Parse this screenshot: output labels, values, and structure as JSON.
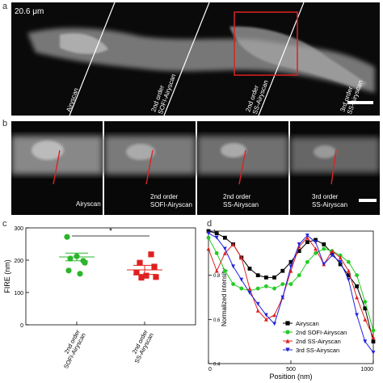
{
  "panel_a": {
    "label": "a",
    "scale_text": "20.6 μm",
    "sections": [
      {
        "line1": "Airyscan",
        "line2": ""
      },
      {
        "line1": "2nd order",
        "line2": "SOFI-Airyscan"
      },
      {
        "line1": "2nd order",
        "line2": "SS-Airyscan"
      },
      {
        "line1": "3rd order",
        "line2": "SS-Airyscan"
      }
    ]
  },
  "panel_b": {
    "label": "b",
    "tiles": [
      {
        "line1": "Airyscan",
        "line2": ""
      },
      {
        "line1": "2nd order",
        "line2": "SOFI-Airyscan"
      },
      {
        "line1": "2nd order",
        "line2": "SS-Airyscan"
      },
      {
        "line1": "3rd order",
        "line2": "SS-Airyscan"
      }
    ]
  },
  "panel_c": {
    "label": "c",
    "significance": "*",
    "chart_data": {
      "type": "scatter",
      "ylabel": "FIRE (nm)",
      "ylim": [
        0,
        300
      ],
      "yticks": [
        0,
        100,
        200,
        300
      ],
      "categories": [
        "2nd order SOFI-Airyscan",
        "2nd order SS-Airyscan"
      ],
      "xtick_labels": [
        {
          "line1": "2nd order",
          "line2": "SOFI-Airyscan"
        },
        {
          "line1": "2nd order",
          "line2": "SS-Airyscan"
        }
      ],
      "series": [
        {
          "color": "#2bb52b",
          "marker": "circle",
          "mean": 210,
          "err": 12,
          "values": [
            272,
            212,
            205,
            198,
            192,
            168,
            158
          ]
        },
        {
          "color": "#e02020",
          "marker": "square",
          "mean": 170,
          "err": 14,
          "values": [
            218,
            192,
            180,
            162,
            152,
            148,
            146
          ]
        }
      ]
    }
  },
  "panel_d": {
    "label": "d",
    "chart_data": {
      "type": "line",
      "xlabel": "Position (nm)",
      "ylabel": "Normalized intensity",
      "xlim": [
        0,
        1000
      ],
      "ylim": [
        0.4,
        1.0
      ],
      "xticks": [
        0,
        500,
        1000
      ],
      "yticks": [
        0.4,
        0.6,
        0.8,
        1.0
      ],
      "legend_position": "bottom-left",
      "series": [
        {
          "name": "Airyscan",
          "color": "#000000",
          "marker": "square",
          "x": [
            0,
            50,
            100,
            150,
            200,
            250,
            300,
            350,
            400,
            450,
            500,
            550,
            600,
            650,
            700,
            750,
            800,
            850,
            900,
            950,
            1000
          ],
          "y": [
            1.0,
            0.99,
            0.97,
            0.94,
            0.88,
            0.83,
            0.8,
            0.79,
            0.79,
            0.82,
            0.86,
            0.91,
            0.95,
            0.96,
            0.94,
            0.9,
            0.85,
            0.8,
            0.75,
            0.65,
            0.5
          ]
        },
        {
          "name": "2nd SOFI-Airyscan",
          "color": "#22cc22",
          "marker": "circle",
          "x": [
            0,
            50,
            100,
            150,
            200,
            250,
            300,
            350,
            400,
            450,
            500,
            550,
            600,
            650,
            700,
            750,
            800,
            850,
            900,
            950,
            1000
          ],
          "y": [
            0.97,
            0.9,
            0.82,
            0.76,
            0.74,
            0.73,
            0.74,
            0.75,
            0.74,
            0.76,
            0.76,
            0.8,
            0.86,
            0.9,
            0.92,
            0.91,
            0.89,
            0.86,
            0.8,
            0.68,
            0.55
          ]
        },
        {
          "name": "2nd SS-Airyscan",
          "color": "#e02020",
          "marker": "triangle-up",
          "x": [
            0,
            50,
            100,
            150,
            200,
            250,
            300,
            350,
            400,
            450,
            500,
            550,
            600,
            650,
            700,
            750,
            800,
            850,
            900,
            950,
            1000
          ],
          "y": [
            0.92,
            0.82,
            0.9,
            0.94,
            0.88,
            0.74,
            0.64,
            0.6,
            0.62,
            0.7,
            0.82,
            0.93,
            0.97,
            0.92,
            0.85,
            0.91,
            0.88,
            0.82,
            0.7,
            0.6,
            0.52
          ]
        },
        {
          "name": "3rd SS-Airyscan",
          "color": "#2020e0",
          "marker": "triangle-down",
          "x": [
            0,
            50,
            100,
            150,
            200,
            250,
            300,
            350,
            400,
            450,
            500,
            550,
            600,
            650,
            700,
            750,
            800,
            850,
            900,
            950,
            1000
          ],
          "y": [
            0.99,
            0.97,
            0.92,
            0.84,
            0.78,
            0.72,
            0.67,
            0.62,
            0.58,
            0.7,
            0.84,
            0.94,
            0.98,
            0.95,
            0.85,
            0.89,
            0.86,
            0.78,
            0.62,
            0.5,
            0.45
          ]
        }
      ]
    }
  }
}
